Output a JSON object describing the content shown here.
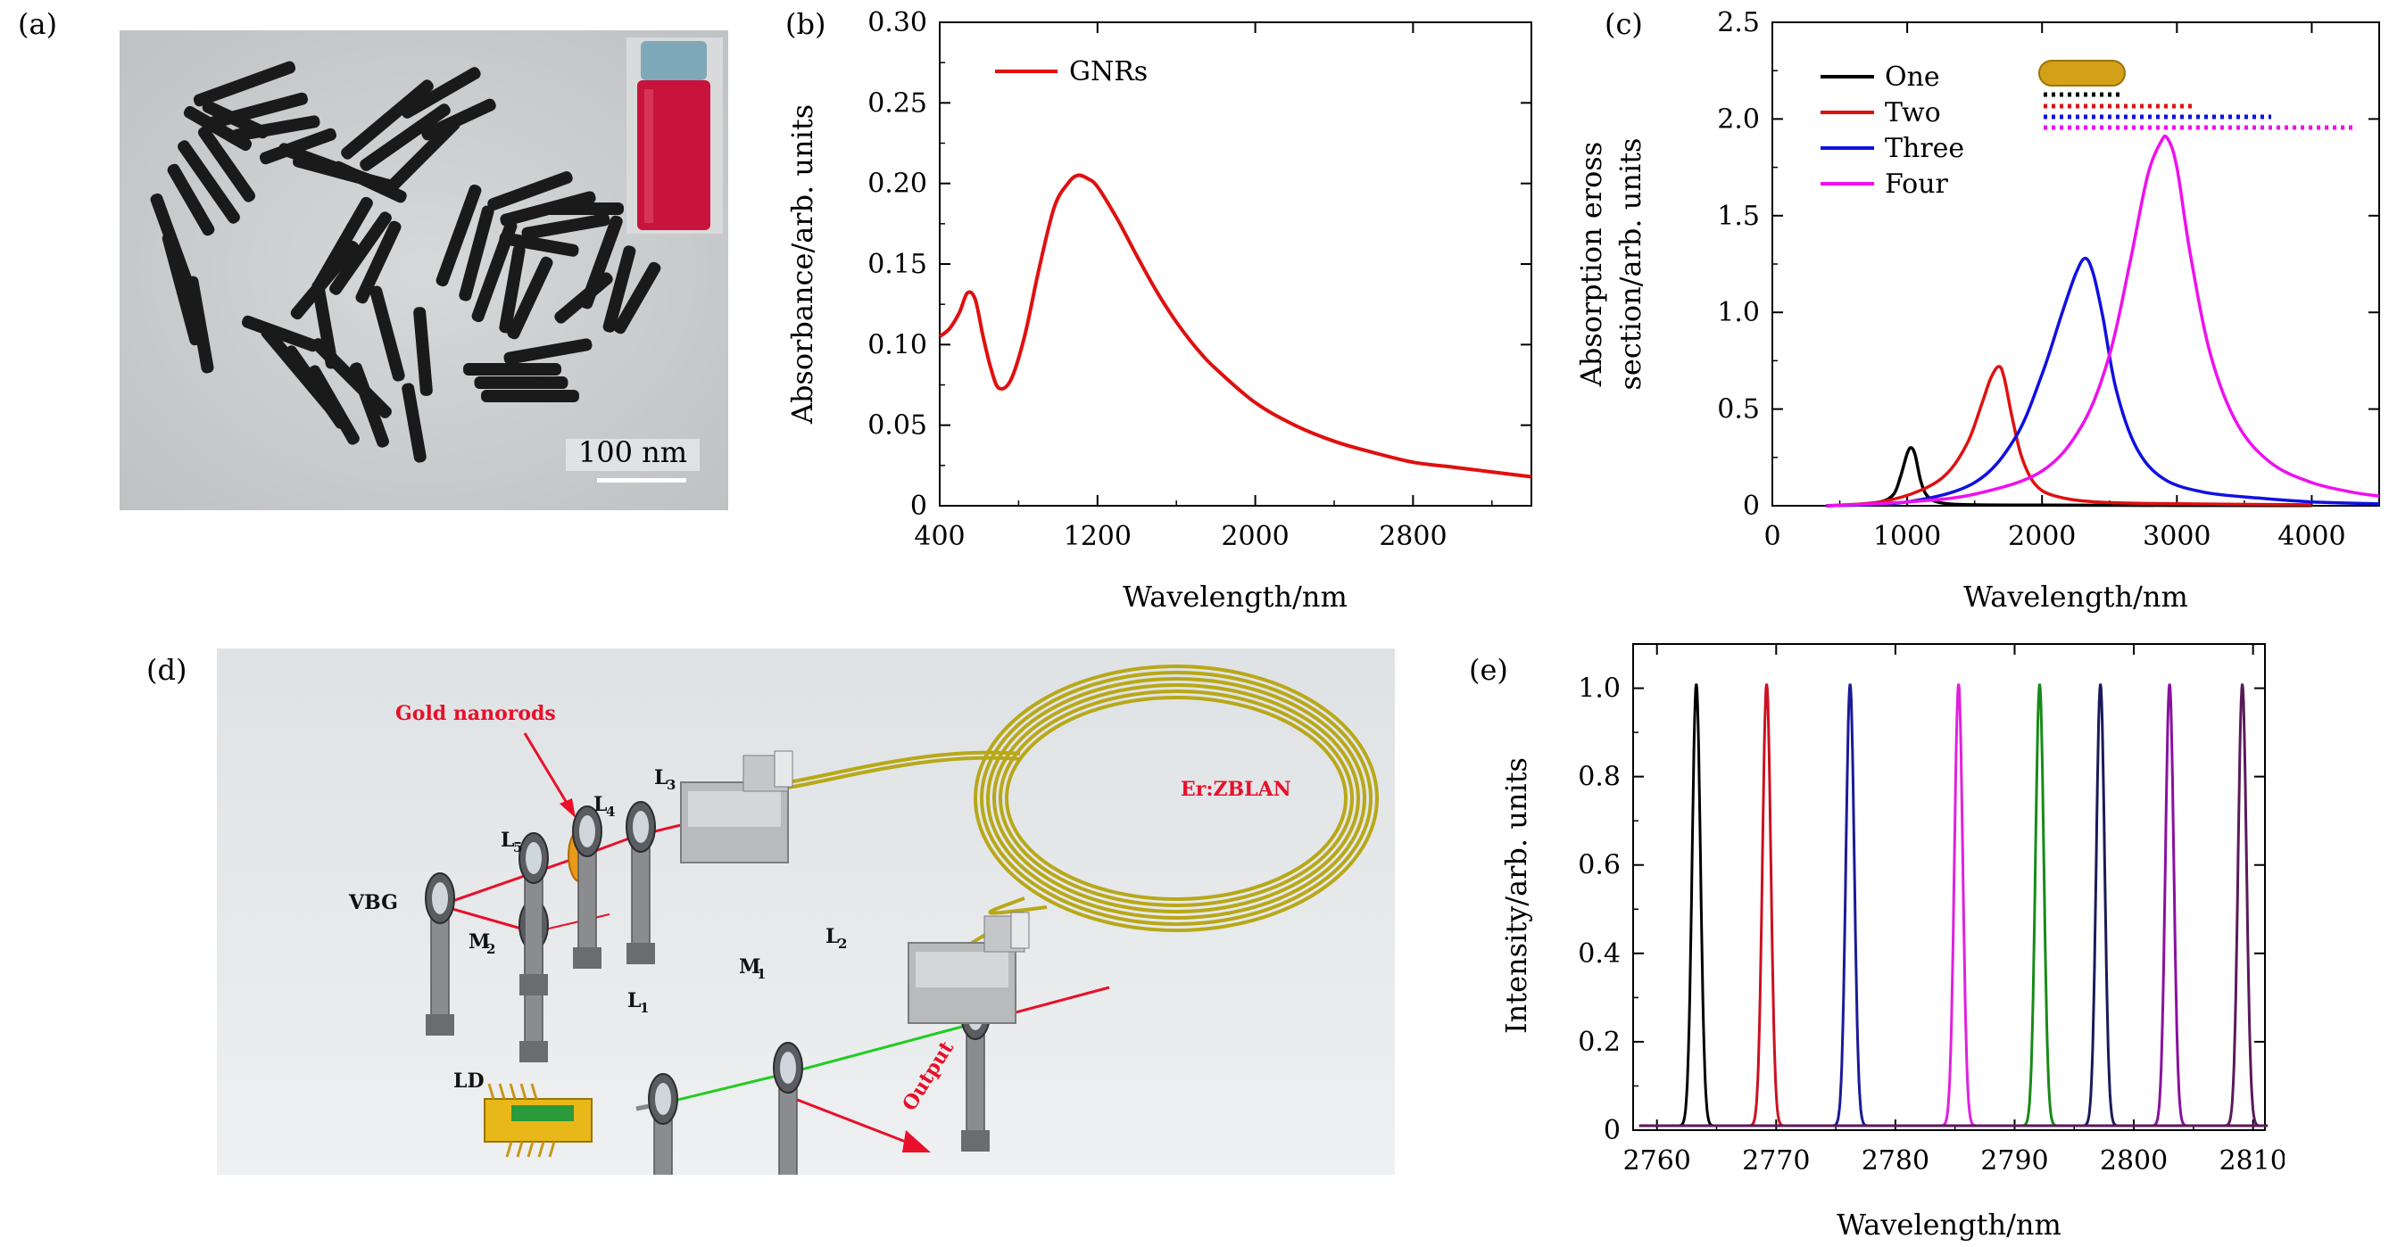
{
  "panels": {
    "a": {
      "label": "(a)",
      "scale_bar_text": "100 nm",
      "colors": {
        "tem_bg": "#c9cccd",
        "rod": "#1a1a1a",
        "vial_cap": "#7fa8b8",
        "vial_liquid": "#c8143c"
      }
    },
    "b": {
      "label": "(b)",
      "legend_label": "GNRs",
      "xlabel": "Wavelength/nm",
      "ylabel": "Absorbance/arb. units",
      "x_ticks": [
        "400",
        "1200",
        "2000",
        "2800"
      ],
      "y_ticks": [
        "0",
        "0.05",
        "0.10",
        "0.15",
        "0.20",
        "0.25",
        "0.30"
      ],
      "colors": {
        "series": "#e01010"
      }
    },
    "c": {
      "label": "(c)",
      "xlabel": "Wavelength/nm",
      "ylabel_line1": "Absorption eross",
      "ylabel_line2": "section/arb. units",
      "x_ticks": [
        "0",
        "1000",
        "2000",
        "3000",
        "4000"
      ],
      "y_ticks": [
        "0",
        "0.5",
        "1.0",
        "1.5",
        "2.0",
        "2.5"
      ],
      "legend": [
        "One",
        "Two",
        "Three",
        "Four"
      ],
      "colors": {
        "One": "#000000",
        "Two": "#e01010",
        "Three": "#1010e0",
        "Four": "#ee10ee",
        "rod": "#d4a017"
      }
    },
    "d": {
      "label": "(d)",
      "labels": {
        "gold": "Gold nanorods",
        "erzblan": "Er:ZBLAN",
        "vbg": "VBG",
        "l1": "L",
        "l1_sub": "1",
        "l2": "L",
        "l2_sub": "2",
        "l3": "L",
        "l3_sub": "3",
        "l4": "L",
        "l4_sub": "4",
        "l5": "L",
        "l5_sub": "5",
        "m1": "M",
        "m1_sub": "1",
        "m2": "M",
        "m2_sub": "2",
        "ld": "LD",
        "output": "Output"
      },
      "colors": {
        "background": "#e9ebec",
        "fiber": "#b8a818",
        "beam_red": "#e8102a",
        "beam_green": "#22cc22",
        "mount": "#8a8c90",
        "label_red": "#e8102a"
      }
    },
    "e": {
      "label": "(e)",
      "xlabel": "Wavelength/nm",
      "ylabel": "Intensity/arb. units",
      "x_ticks": [
        "2760",
        "2770",
        "2780",
        "2790",
        "2800",
        "2810"
      ],
      "y_ticks": [
        "0",
        "0.2",
        "0.4",
        "0.6",
        "0.8",
        "1.0"
      ],
      "colors": {
        "peak1": "#000000",
        "peak2": "#cc1020",
        "peak3": "#1a1a9a",
        "peak4": "#e020e0",
        "peak5": "#188a18",
        "peak6": "#1a1a5a",
        "peak7": "#8a10a0",
        "peak8": "#5a1a5a"
      }
    }
  },
  "chart_data": [
    {
      "id": "b",
      "type": "line",
      "title": "",
      "xlabel": "Wavelength/nm",
      "ylabel": "Absorbance/arb. units",
      "xlim": [
        400,
        3400
      ],
      "ylim": [
        0,
        0.3
      ],
      "series": [
        {
          "name": "GNRs",
          "x": [
            400,
            450,
            500,
            540,
            580,
            620,
            660,
            700,
            760,
            830,
            900,
            980,
            1050,
            1100,
            1150,
            1200,
            1300,
            1400,
            1500,
            1600,
            1700,
            1800,
            2000,
            2200,
            2400,
            2600,
            2800,
            3000,
            3200,
            3400
          ],
          "y": [
            0.105,
            0.11,
            0.12,
            0.132,
            0.128,
            0.105,
            0.085,
            0.073,
            0.078,
            0.105,
            0.145,
            0.185,
            0.2,
            0.205,
            0.203,
            0.198,
            0.178,
            0.155,
            0.133,
            0.114,
            0.098,
            0.085,
            0.064,
            0.05,
            0.04,
            0.033,
            0.027,
            0.024,
            0.021,
            0.018
          ]
        }
      ]
    },
    {
      "id": "c",
      "type": "line",
      "title": "",
      "xlabel": "Wavelength/nm",
      "ylabel": "Absorption eross section/arb. units",
      "xlim": [
        0,
        4500
      ],
      "ylim": [
        0,
        2.5
      ],
      "series": [
        {
          "name": "One",
          "x": [
            400,
            600,
            800,
            900,
            950,
            1000,
            1030,
            1060,
            1100,
            1150,
            1250,
            1500,
            2000,
            3000,
            4000
          ],
          "y": [
            0.0,
            0.005,
            0.02,
            0.06,
            0.15,
            0.27,
            0.3,
            0.26,
            0.13,
            0.05,
            0.015,
            0.005,
            0.003,
            0.002,
            0.001
          ]
        },
        {
          "name": "Two",
          "x": [
            400,
            800,
            1100,
            1300,
            1450,
            1550,
            1620,
            1680,
            1720,
            1780,
            1850,
            1950,
            2100,
            2400,
            3000,
            4000
          ],
          "y": [
            0.0,
            0.02,
            0.08,
            0.17,
            0.33,
            0.52,
            0.66,
            0.72,
            0.66,
            0.45,
            0.25,
            0.11,
            0.05,
            0.02,
            0.01,
            0.005
          ]
        },
        {
          "name": "Three",
          "x": [
            400,
            1000,
            1500,
            1800,
            2000,
            2150,
            2250,
            2320,
            2380,
            2450,
            2550,
            2700,
            2900,
            3200,
            3600,
            4000,
            4500
          ],
          "y": [
            0.0,
            0.02,
            0.12,
            0.35,
            0.68,
            1.0,
            1.2,
            1.28,
            1.2,
            0.98,
            0.6,
            0.3,
            0.14,
            0.07,
            0.04,
            0.02,
            0.01
          ]
        },
        {
          "name": "Four",
          "x": [
            400,
            1000,
            1500,
            2000,
            2300,
            2500,
            2650,
            2780,
            2880,
            2930,
            3000,
            3100,
            3250,
            3450,
            3700,
            4000,
            4300,
            4500
          ],
          "y": [
            0.0,
            0.02,
            0.06,
            0.18,
            0.42,
            0.78,
            1.25,
            1.7,
            1.88,
            1.9,
            1.75,
            1.3,
            0.78,
            0.42,
            0.22,
            0.12,
            0.07,
            0.05
          ]
        }
      ]
    },
    {
      "id": "e",
      "type": "line",
      "title": "",
      "xlabel": "Wavelength/nm",
      "ylabel": "Intensity/arb. units",
      "xlim": [
        2758,
        2811
      ],
      "ylim": [
        0,
        1.1
      ],
      "series": [
        {
          "name": "peak1",
          "center": 2763.3,
          "peak": 1.0
        },
        {
          "name": "peak2",
          "center": 2769.2,
          "peak": 1.0
        },
        {
          "name": "peak3",
          "center": 2776.2,
          "peak": 1.0
        },
        {
          "name": "peak4",
          "center": 2785.3,
          "peak": 1.0
        },
        {
          "name": "peak5",
          "center": 2792.1,
          "peak": 1.0
        },
        {
          "name": "peak6",
          "center": 2797.2,
          "peak": 1.0
        },
        {
          "name": "peak7",
          "center": 2803.0,
          "peak": 1.0
        },
        {
          "name": "peak8",
          "center": 2809.1,
          "peak": 1.0
        }
      ]
    }
  ]
}
